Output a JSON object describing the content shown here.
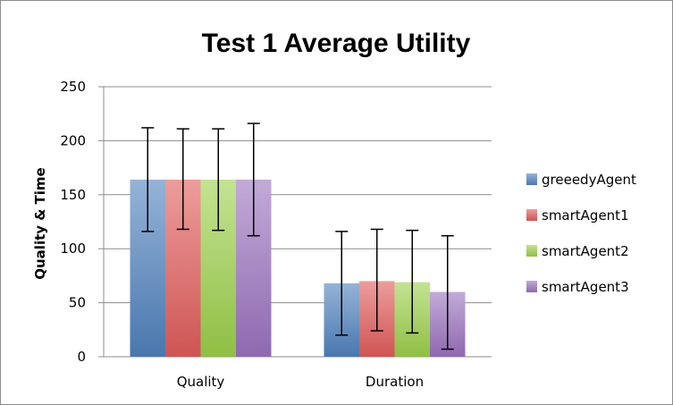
{
  "chart_data": {
    "type": "bar",
    "title": "Test 1 Average Utility",
    "xlabel": "",
    "ylabel": "Quality & Time",
    "ylim": [
      0,
      250
    ],
    "yticks": [
      0,
      50,
      100,
      150,
      200,
      250
    ],
    "grid": true,
    "legend_position": "right",
    "categories": [
      "Quality",
      "Duration"
    ],
    "series": [
      {
        "name": "greeedyAgent",
        "color": "#4f81bd",
        "values": [
          164,
          68
        ],
        "err_low": [
          116,
          20
        ],
        "err_high": [
          212,
          116
        ]
      },
      {
        "name": "smartAgent1",
        "color": "#e05c5a",
        "values": [
          164,
          70
        ],
        "err_low": [
          118,
          24
        ],
        "err_high": [
          211,
          118
        ]
      },
      {
        "name": "smartAgent2",
        "color": "#9bd04a",
        "values": [
          164,
          69
        ],
        "err_low": [
          117,
          22
        ],
        "err_high": [
          211,
          117
        ]
      },
      {
        "name": "smartAgent3",
        "color": "#9a72be",
        "values": [
          164,
          60
        ],
        "err_low": [
          112,
          7
        ],
        "err_high": [
          216,
          112
        ]
      }
    ]
  }
}
